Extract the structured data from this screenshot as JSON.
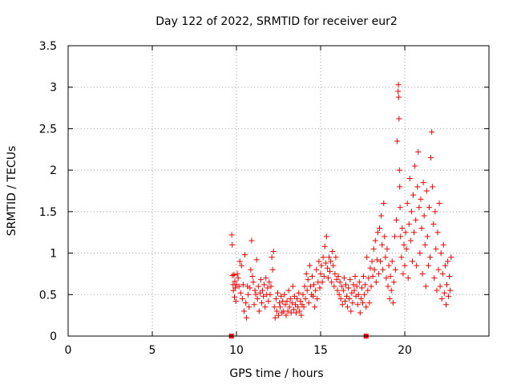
{
  "chart_data": {
    "type": "scatter",
    "title": "Day 122 of 2022, SRMTID for receiver eur2",
    "xlabel": "GPS time / hours",
    "ylabel": "SRMTID / TECUs",
    "xlim": [
      0,
      25
    ],
    "ylim": [
      0,
      3.5
    ],
    "xticks": [
      0,
      5,
      10,
      15,
      20
    ],
    "yticks": [
      0,
      0.5,
      1,
      1.5,
      2,
      2.5,
      3,
      3.5
    ],
    "xtick_labels": [
      "0",
      "5",
      "10",
      "15",
      "20"
    ],
    "ytick_labels": [
      "0",
      "0.5",
      "1",
      "1.5",
      "2",
      "2.5",
      "3",
      "3.5"
    ],
    "grid": true,
    "marker": "+",
    "color": "#ff0000",
    "gap_markers": [
      {
        "x": 9.7,
        "y": 0
      },
      {
        "x": 17.7,
        "y": 0
      }
    ],
    "series": [
      {
        "name": "SRMTID",
        "points": [
          [
            9.72,
            1.22
          ],
          [
            9.75,
            1.1
          ],
          [
            9.76,
            0.73
          ],
          [
            9.8,
            0.62
          ],
          [
            9.82,
            0.55
          ],
          [
            9.85,
            0.74
          ],
          [
            9.88,
            0.47
          ],
          [
            9.9,
            0.66
          ],
          [
            9.93,
            0.58
          ],
          [
            9.96,
            0.42
          ],
          [
            10.0,
            0.62
          ],
          [
            10.05,
            0.75
          ],
          [
            10.1,
            0.7
          ],
          [
            10.15,
            0.6
          ],
          [
            10.2,
            0.9
          ],
          [
            10.25,
            0.52
          ],
          [
            10.3,
            0.85
          ],
          [
            10.35,
            0.45
          ],
          [
            10.4,
            0.62
          ],
          [
            10.45,
            0.3
          ],
          [
            10.5,
            0.98
          ],
          [
            10.55,
            0.4
          ],
          [
            10.6,
            0.22
          ],
          [
            10.65,
            0.6
          ],
          [
            10.7,
            0.5
          ],
          [
            10.75,
            0.35
          ],
          [
            10.8,
            0.58
          ],
          [
            10.85,
            0.8
          ],
          [
            10.9,
            1.15
          ],
          [
            10.95,
            0.72
          ],
          [
            11.0,
            0.65
          ],
          [
            11.05,
            0.38
          ],
          [
            11.1,
            0.55
          ],
          [
            11.15,
            0.5
          ],
          [
            11.2,
            0.92
          ],
          [
            11.25,
            0.45
          ],
          [
            11.3,
            0.6
          ],
          [
            11.35,
            0.3
          ],
          [
            11.4,
            0.52
          ],
          [
            11.45,
            0.68
          ],
          [
            11.5,
            0.4
          ],
          [
            11.55,
            0.55
          ],
          [
            11.6,
            0.48
          ],
          [
            11.65,
            0.62
          ],
          [
            11.7,
            0.35
          ],
          [
            11.75,
            0.7
          ],
          [
            11.8,
            0.5
          ],
          [
            11.85,
            0.58
          ],
          [
            11.9,
            0.42
          ],
          [
            11.95,
            0.65
          ],
          [
            12.0,
            0.5
          ],
          [
            12.05,
            0.6
          ],
          [
            12.1,
            0.95
          ],
          [
            12.15,
            0.8
          ],
          [
            12.2,
            1.02
          ],
          [
            12.25,
            0.35
          ],
          [
            12.3,
            0.22
          ],
          [
            12.35,
            0.45
          ],
          [
            12.4,
            0.3
          ],
          [
            12.45,
            0.52
          ],
          [
            12.5,
            0.25
          ],
          [
            12.55,
            0.4
          ],
          [
            12.6,
            0.35
          ],
          [
            12.65,
            0.48
          ],
          [
            12.7,
            0.28
          ],
          [
            12.75,
            0.42
          ],
          [
            12.8,
            0.3
          ],
          [
            12.85,
            0.5
          ],
          [
            12.9,
            0.38
          ],
          [
            12.95,
            0.25
          ],
          [
            13.0,
            0.42
          ],
          [
            13.05,
            0.3
          ],
          [
            13.1,
            0.55
          ],
          [
            13.15,
            0.35
          ],
          [
            13.2,
            0.45
          ],
          [
            13.25,
            0.28
          ],
          [
            13.3,
            0.4
          ],
          [
            13.35,
            0.6
          ],
          [
            13.4,
            0.32
          ],
          [
            13.45,
            0.48
          ],
          [
            13.5,
            0.38
          ],
          [
            13.55,
            0.28
          ],
          [
            13.6,
            0.45
          ],
          [
            13.65,
            0.35
          ],
          [
            13.7,
            0.52
          ],
          [
            13.75,
            0.3
          ],
          [
            13.8,
            0.42
          ],
          [
            13.85,
            0.25
          ],
          [
            13.9,
            0.38
          ],
          [
            13.95,
            0.5
          ],
          [
            14.0,
            0.35
          ],
          [
            14.05,
            0.6
          ],
          [
            14.1,
            0.45
          ],
          [
            14.15,
            0.75
          ],
          [
            14.2,
            0.55
          ],
          [
            14.25,
            0.68
          ],
          [
            14.3,
            0.4
          ],
          [
            14.35,
            0.85
          ],
          [
            14.4,
            0.6
          ],
          [
            14.45,
            0.5
          ],
          [
            14.5,
            0.72
          ],
          [
            14.55,
            0.48
          ],
          [
            14.6,
            0.62
          ],
          [
            14.65,
            0.35
          ],
          [
            14.7,
            0.55
          ],
          [
            14.75,
            0.8
          ],
          [
            14.8,
            0.45
          ],
          [
            14.85,
            0.65
          ],
          [
            14.9,
            0.9
          ],
          [
            14.95,
            0.58
          ],
          [
            15.0,
            0.75
          ],
          [
            15.05,
            0.85
          ],
          [
            15.1,
            0.65
          ],
          [
            15.15,
            0.95
          ],
          [
            15.2,
            0.72
          ],
          [
            15.25,
            1.08
          ],
          [
            15.3,
            0.88
          ],
          [
            15.35,
            1.2
          ],
          [
            15.4,
            0.82
          ],
          [
            15.45,
            0.7
          ],
          [
            15.5,
            0.95
          ],
          [
            15.55,
            0.78
          ],
          [
            15.6,
            0.9
          ],
          [
            15.65,
            0.65
          ],
          [
            15.7,
            1.02
          ],
          [
            15.75,
            0.85
          ],
          [
            15.8,
            0.6
          ],
          [
            15.85,
            0.75
          ],
          [
            15.9,
            0.95
          ],
          [
            15.95,
            0.68
          ],
          [
            16.0,
            0.55
          ],
          [
            16.05,
            0.72
          ],
          [
            16.1,
            0.5
          ],
          [
            16.15,
            0.65
          ],
          [
            16.2,
            0.45
          ],
          [
            16.25,
            0.6
          ],
          [
            16.3,
            0.38
          ],
          [
            16.35,
            0.55
          ],
          [
            16.4,
            0.7
          ],
          [
            16.45,
            0.42
          ],
          [
            16.5,
            0.62
          ],
          [
            16.55,
            0.48
          ],
          [
            16.6,
            0.35
          ],
          [
            16.65,
            0.58
          ],
          [
            16.7,
            0.45
          ],
          [
            16.75,
            0.68
          ],
          [
            16.8,
            0.3
          ],
          [
            16.85,
            0.52
          ],
          [
            16.9,
            0.4
          ],
          [
            16.95,
            0.62
          ],
          [
            17.0,
            0.55
          ],
          [
            17.05,
            0.72
          ],
          [
            17.1,
            0.48
          ],
          [
            17.15,
            0.6
          ],
          [
            17.2,
            0.38
          ],
          [
            17.25,
            0.5
          ],
          [
            17.3,
            0.65
          ],
          [
            17.35,
            0.28
          ],
          [
            17.4,
            0.45
          ],
          [
            17.45,
            0.58
          ],
          [
            17.5,
            0.4
          ],
          [
            17.55,
            0.72
          ],
          [
            17.6,
            0.5
          ],
          [
            17.65,
            0.62
          ],
          [
            17.7,
            0.35
          ],
          [
            17.75,
            0.95
          ],
          [
            17.8,
            0.55
          ],
          [
            17.85,
            0.7
          ],
          [
            17.9,
            0.4
          ],
          [
            17.95,
            0.82
          ],
          [
            18.0,
            0.6
          ],
          [
            18.05,
            0.9
          ],
          [
            18.1,
            0.72
          ],
          [
            18.15,
            1.05
          ],
          [
            18.2,
            0.8
          ],
          [
            18.25,
            1.15
          ],
          [
            18.3,
            0.65
          ],
          [
            18.35,
            0.92
          ],
          [
            18.4,
            1.25
          ],
          [
            18.45,
            0.75
          ],
          [
            18.5,
            1.3
          ],
          [
            18.55,
            0.9
          ],
          [
            18.6,
            1.45
          ],
          [
            18.65,
            1.1
          ],
          [
            18.7,
            0.8
          ],
          [
            18.75,
            1.6
          ],
          [
            18.8,
            1.2
          ],
          [
            18.85,
            0.95
          ],
          [
            18.9,
            0.7
          ],
          [
            18.95,
            1.05
          ],
          [
            19.0,
            0.6
          ],
          [
            19.05,
            0.85
          ],
          [
            19.1,
            0.45
          ],
          [
            19.15,
            0.72
          ],
          [
            19.2,
            0.55
          ],
          [
            19.25,
            0.9
          ],
          [
            19.3,
            0.4
          ],
          [
            19.35,
            0.65
          ],
          [
            19.4,
            1.2
          ],
          [
            19.45,
            0.8
          ],
          [
            19.5,
            1.4
          ],
          [
            19.55,
            2.35
          ],
          [
            19.6,
            2.95
          ],
          [
            19.62,
            3.03
          ],
          [
            19.64,
            2.88
          ],
          [
            19.66,
            2.62
          ],
          [
            19.68,
            2.0
          ],
          [
            19.7,
            1.8
          ],
          [
            19.72,
            1.55
          ],
          [
            19.75,
            1.2
          ],
          [
            19.8,
            0.95
          ],
          [
            19.85,
            1.3
          ],
          [
            19.9,
            0.75
          ],
          [
            19.95,
            1.1
          ],
          [
            20.0,
            0.85
          ],
          [
            20.05,
            1.25
          ],
          [
            20.1,
            1.05
          ],
          [
            20.15,
            1.6
          ],
          [
            20.2,
            0.7
          ],
          [
            20.25,
            1.35
          ],
          [
            20.3,
            1.9
          ],
          [
            20.35,
            1.15
          ],
          [
            20.4,
            1.5
          ],
          [
            20.45,
            0.9
          ],
          [
            20.5,
            1.7
          ],
          [
            20.55,
            1.25
          ],
          [
            20.6,
            2.05
          ],
          [
            20.65,
            1.4
          ],
          [
            20.7,
            0.85
          ],
          [
            20.75,
            1.8
          ],
          [
            20.8,
            2.22
          ],
          [
            20.85,
            1.55
          ],
          [
            20.9,
            1.0
          ],
          [
            20.95,
            1.65
          ],
          [
            21.0,
            1.3
          ],
          [
            21.05,
            0.75
          ],
          [
            21.1,
            1.85
          ],
          [
            21.15,
            1.45
          ],
          [
            21.2,
            1.1
          ],
          [
            21.25,
            0.6
          ],
          [
            21.3,
            1.75
          ],
          [
            21.35,
            1.2
          ],
          [
            21.4,
            0.85
          ],
          [
            21.45,
            1.55
          ],
          [
            21.5,
            0.95
          ],
          [
            21.55,
            2.15
          ],
          [
            21.6,
            2.46
          ],
          [
            21.65,
            1.8
          ],
          [
            21.7,
            1.35
          ],
          [
            21.75,
            0.7
          ],
          [
            21.8,
            1.5
          ],
          [
            21.85,
            1.05
          ],
          [
            21.9,
            0.55
          ],
          [
            21.95,
            1.25
          ],
          [
            22.0,
            0.8
          ],
          [
            22.05,
            1.6
          ],
          [
            22.1,
            0.6
          ],
          [
            22.15,
            1.0
          ],
          [
            22.2,
            0.45
          ],
          [
            22.25,
            0.75
          ],
          [
            22.3,
            1.1
          ],
          [
            22.35,
            0.52
          ],
          [
            22.4,
            0.85
          ],
          [
            22.45,
            0.38
          ],
          [
            22.5,
            0.62
          ],
          [
            22.55,
            0.9
          ],
          [
            22.6,
            0.48
          ],
          [
            22.65,
            0.72
          ],
          [
            22.7,
            0.55
          ],
          [
            22.75,
            0.95
          ]
        ]
      }
    ]
  }
}
